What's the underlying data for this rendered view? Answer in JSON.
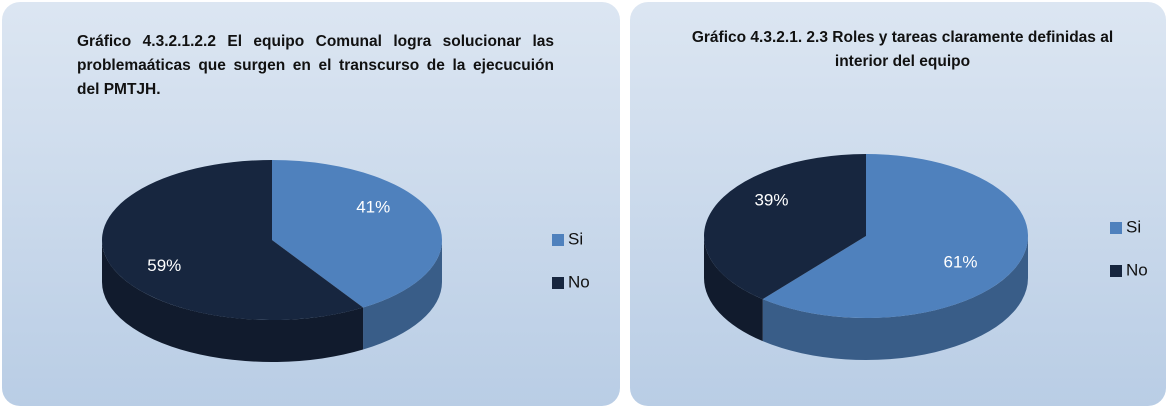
{
  "chart_data": [
    {
      "type": "pie",
      "title": "Gráfico 4.3.2.1.2.2 El equipo Comunal logra solucionar las problemaáticas que surgen en el transcurso de la ejecucuión del PMTJH.",
      "categories": [
        "Si",
        "No"
      ],
      "values": [
        41,
        59
      ],
      "value_labels": [
        "41%",
        "59%"
      ],
      "colors": [
        "#4f81bd",
        "#17263f"
      ]
    },
    {
      "type": "pie",
      "title": "Gráfico 4.3.2.1. 2.3 Roles y tareas claramente definidas al interior del equipo",
      "categories": [
        "Si",
        "No"
      ],
      "values": [
        61,
        39
      ],
      "value_labels": [
        "61%",
        "39%"
      ],
      "colors": [
        "#4f81bd",
        "#17263f"
      ]
    }
  ]
}
